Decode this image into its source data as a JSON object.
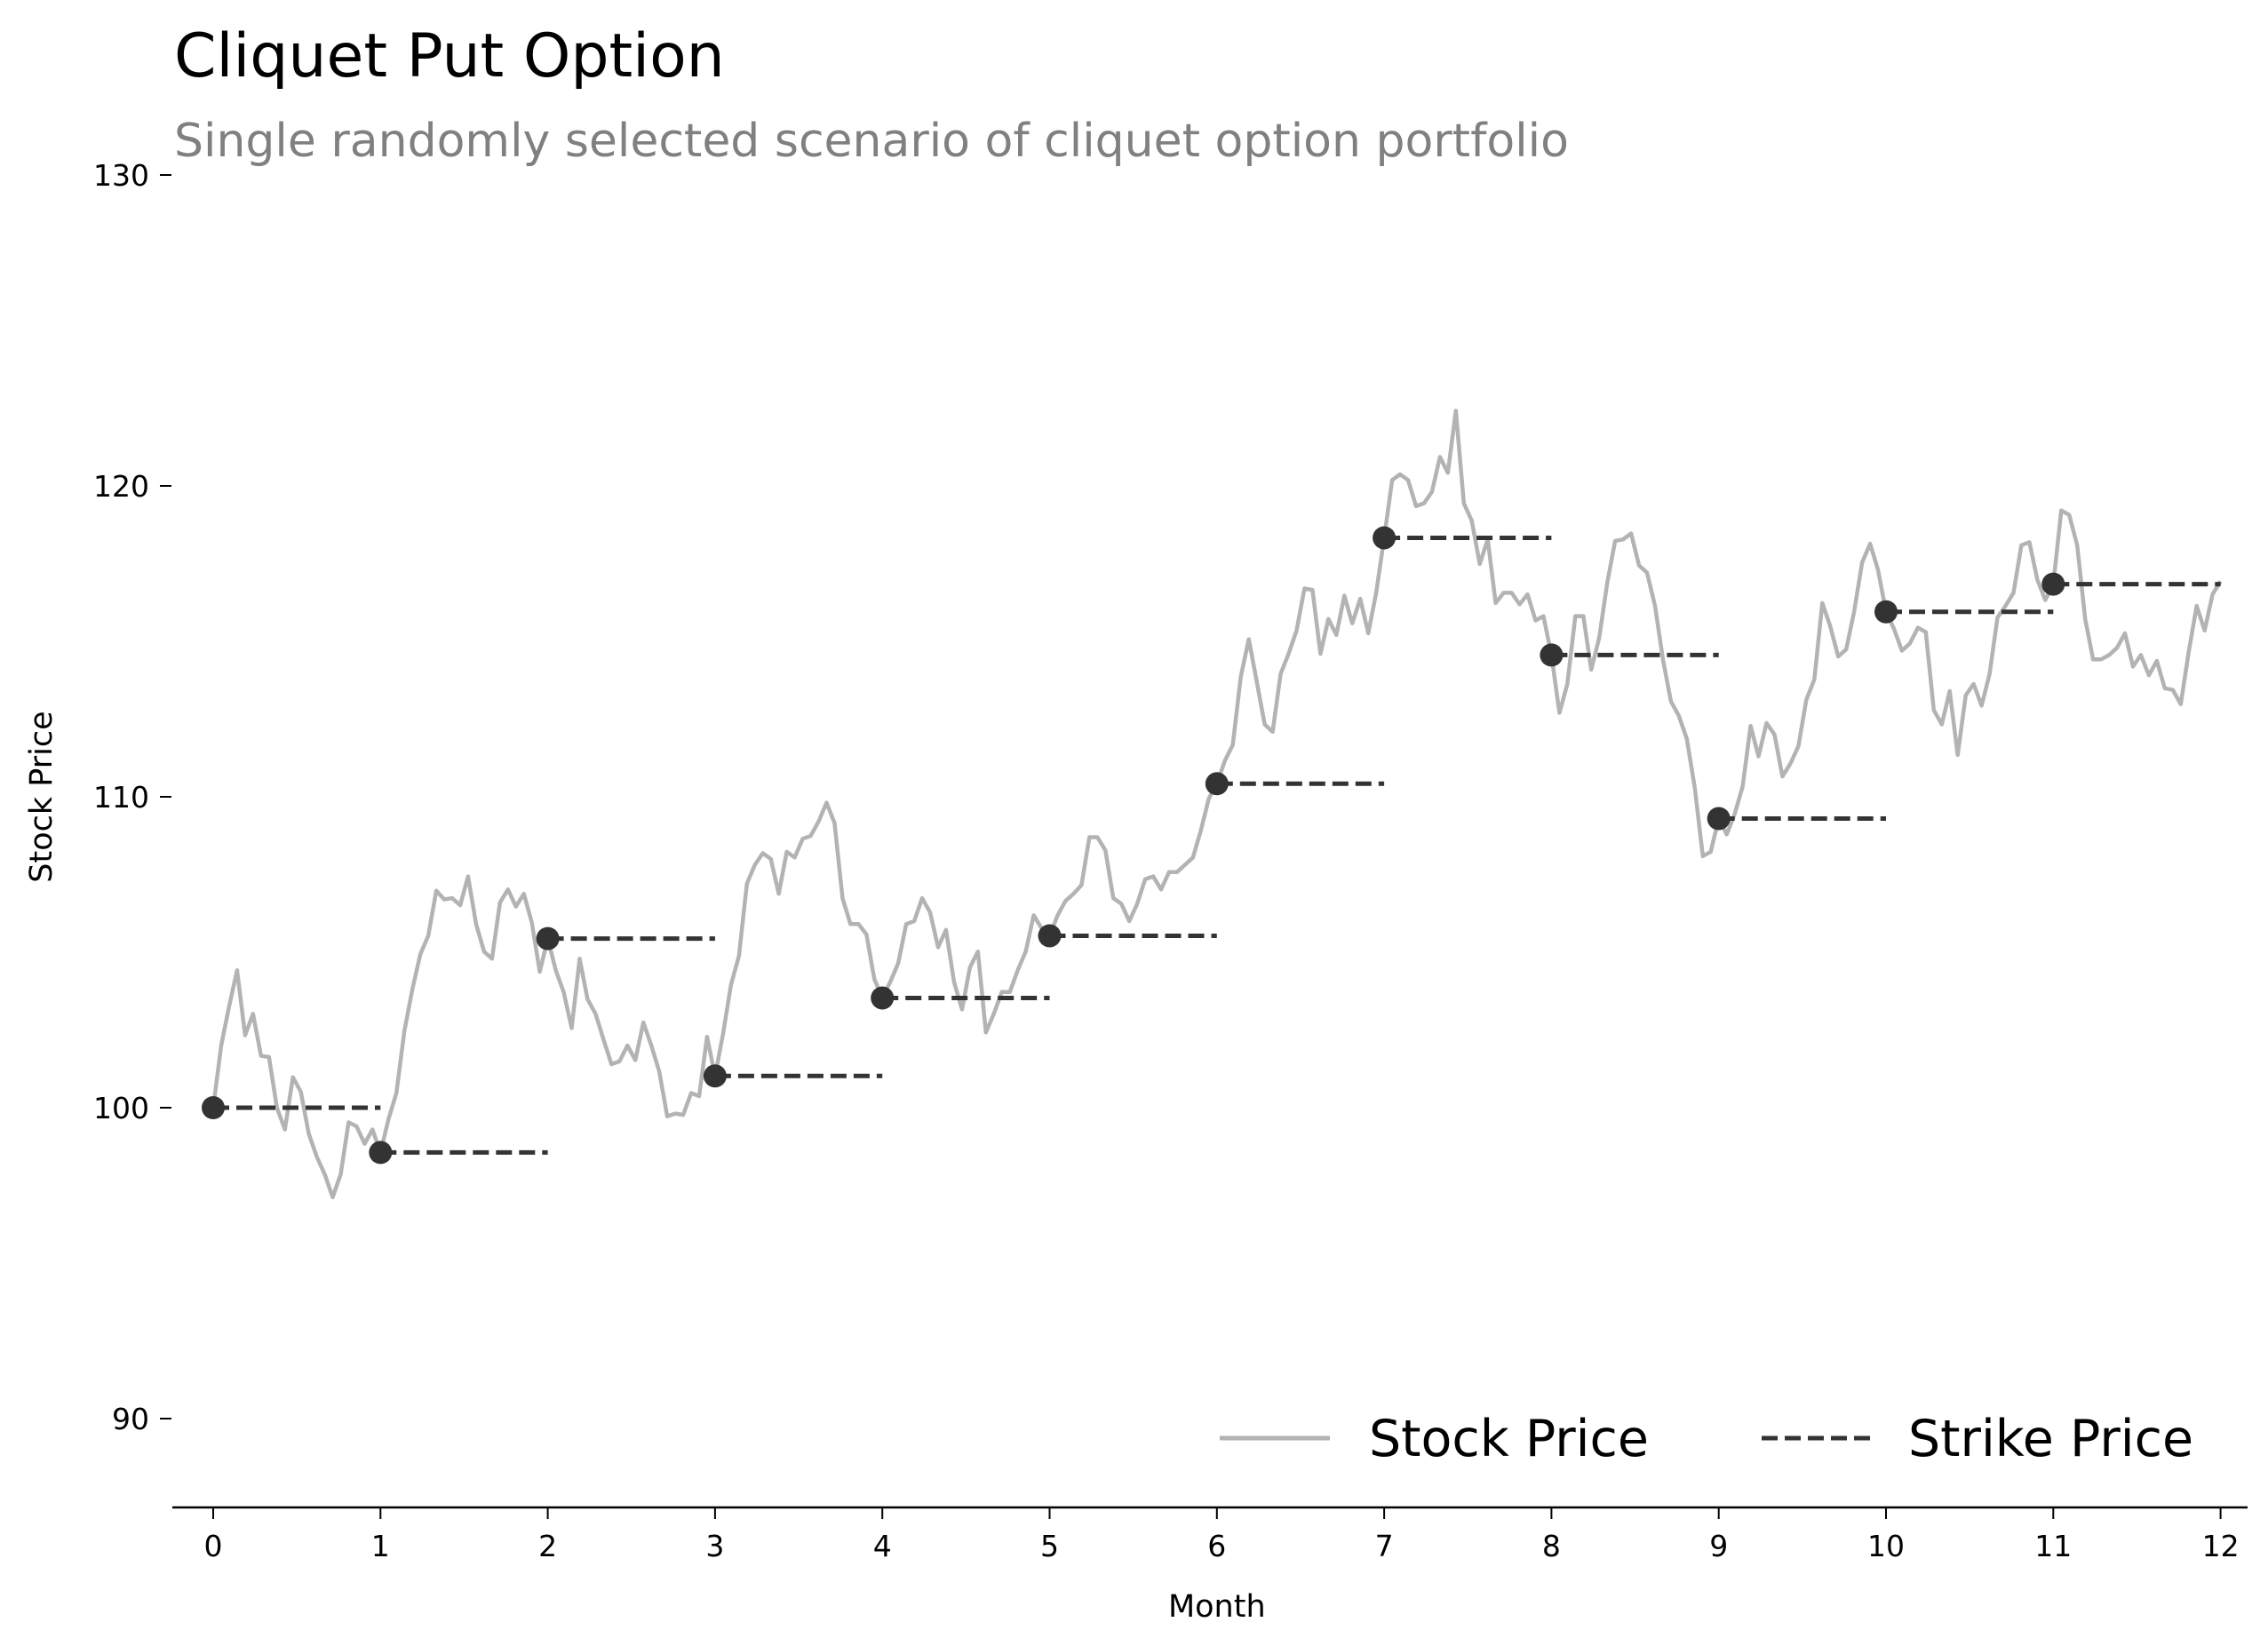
{
  "chart_data": {
    "type": "line",
    "title": "Cliquet Put Option",
    "subtitle": "Single randomly selected scenario of cliquet option portfolio",
    "xlabel": "Month",
    "ylabel": "Stock Price",
    "xlim": [
      -0.25,
      12.15
    ],
    "ylim": [
      87.2,
      130
    ],
    "xticks": [
      0,
      1,
      2,
      3,
      4,
      5,
      6,
      7,
      8,
      9,
      10,
      11,
      12
    ],
    "xtick_labels": [
      "0",
      "1",
      "2",
      "3",
      "4",
      "5",
      "6",
      "7",
      "8",
      "9",
      "10",
      "11",
      "12"
    ],
    "yticks": [
      90,
      100,
      110,
      120,
      130
    ],
    "ytick_labels": [
      "90",
      "100",
      "110",
      "120",
      "130"
    ],
    "grid": false,
    "legend": {
      "placement": "bottom-right",
      "entries": [
        {
          "label": "Stock Price",
          "style": "solid",
          "color": "#b3b3b3"
        },
        {
          "label": "Strike Price",
          "style": "dashed",
          "color": "#333333"
        }
      ]
    },
    "series": [
      {
        "name": "Stock Price",
        "style": "solid",
        "color": "#b3b3b3",
        "steps_per_month": 21,
        "values": [
          100.0,
          102.0,
          103.26,
          104.42,
          102.33,
          103.02,
          101.67,
          101.63,
          100.0,
          99.3,
          100.98,
          100.51,
          99.16,
          98.42,
          97.86,
          97.12,
          97.86,
          99.53,
          99.4,
          98.84,
          99.3,
          98.56,
          99.63,
          100.47,
          102.47,
          103.81,
          104.93,
          105.53,
          106.98,
          106.7,
          106.74,
          106.51,
          107.44,
          105.91,
          105.02,
          104.79,
          106.6,
          107.02,
          106.47,
          106.88,
          105.95,
          104.37,
          105.44,
          104.42,
          103.72,
          102.56,
          104.79,
          103.49,
          103.02,
          102.19,
          101.4,
          101.49,
          102.0,
          101.53,
          102.74,
          102.0,
          101.16,
          99.72,
          99.81,
          99.77,
          100.47,
          100.37,
          102.28,
          101.02,
          102.37,
          103.95,
          104.88,
          107.21,
          107.81,
          108.19,
          108.0,
          106.88,
          108.23,
          108.05,
          108.65,
          108.74,
          109.21,
          109.81,
          109.16,
          106.74,
          105.91,
          105.91,
          105.58,
          104.14,
          103.53,
          104.05,
          104.65,
          105.91,
          106.0,
          106.74,
          106.28,
          105.16,
          105.72,
          104.05,
          103.16,
          104.51,
          105.02,
          102.42,
          103.02,
          103.72,
          103.72,
          104.42,
          105.02,
          106.19,
          105.77,
          105.53,
          106.19,
          106.65,
          106.88,
          107.16,
          108.7,
          108.7,
          108.28,
          106.74,
          106.56,
          106.0,
          106.56,
          107.35,
          107.44,
          107.02,
          107.58,
          107.58,
          107.81,
          108.05,
          108.93,
          109.95,
          110.42,
          111.16,
          111.67,
          113.86,
          115.07,
          113.72,
          112.33,
          112.09,
          113.95,
          114.6,
          115.35,
          116.7,
          116.65,
          114.6,
          115.72,
          115.21,
          116.47,
          115.58,
          116.37,
          115.26,
          116.56,
          118.33,
          120.19,
          120.37,
          120.19,
          119.35,
          119.44,
          119.81,
          120.93,
          120.42,
          122.42,
          119.44,
          118.88,
          117.49,
          118.28,
          116.23,
          116.56,
          116.56,
          116.19,
          116.51,
          115.67,
          115.81,
          114.56,
          112.7,
          113.63,
          115.81,
          115.81,
          114.09,
          115.12,
          116.88,
          118.23,
          118.28,
          118.47,
          117.44,
          117.21,
          116.14,
          114.42,
          113.07,
          112.6,
          111.86,
          110.28,
          108.09,
          108.23,
          109.3,
          108.79,
          109.44,
          110.33,
          112.28,
          111.3,
          112.37,
          112.0,
          110.65,
          111.07,
          111.63,
          113.12,
          113.77,
          116.23,
          115.49,
          114.51,
          114.74,
          115.95,
          117.53,
          118.14,
          117.3,
          115.95,
          115.4,
          114.7,
          114.93,
          115.44,
          115.3,
          112.79,
          112.33,
          113.4,
          111.35,
          113.26,
          113.63,
          112.93,
          113.95,
          115.77,
          116.14,
          116.56,
          118.09,
          118.19,
          116.98,
          116.33,
          116.84,
          119.21,
          119.07,
          118.09,
          115.72,
          114.42,
          114.42,
          114.56,
          114.79,
          115.26,
          114.19,
          114.56,
          113.91,
          114.37,
          113.49,
          113.44,
          112.98,
          114.65,
          116.14,
          115.35,
          116.51,
          116.93
        ]
      },
      {
        "name": "Strike Price",
        "style": "dashed",
        "color": "#333333",
        "reset_months": [
          0,
          1,
          2,
          3,
          4,
          5,
          6,
          7,
          8,
          9,
          10,
          11
        ],
        "values": [
          100.0,
          98.56,
          105.44,
          101.02,
          103.53,
          105.53,
          110.42,
          118.33,
          114.56,
          109.3,
          115.95,
          116.84
        ]
      }
    ]
  }
}
